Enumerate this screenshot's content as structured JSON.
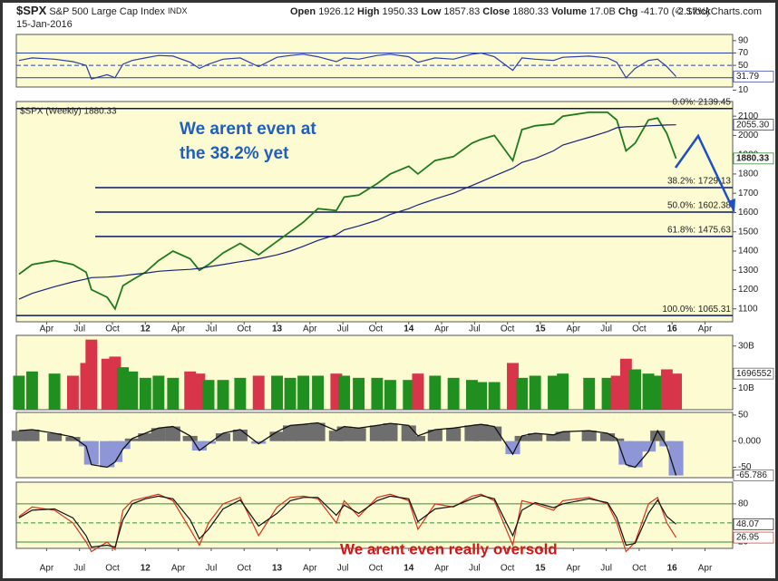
{
  "header": {
    "symbol": "$SPX",
    "name": "S&P 500 Large Cap Index",
    "exchange": "INDX",
    "date": "15-Jan-2016",
    "open_label": "Open",
    "open": "1926.12",
    "high_label": "High",
    "high": "1950.33",
    "low_label": "Low",
    "low": "1857.83",
    "close_label": "Close",
    "close": "1880.33",
    "volume_label": "Volume",
    "volume": "17.0B",
    "chg_label": "Chg",
    "chg": "-41.70 (-2.17%)",
    "source": "© StockCharts.com"
  },
  "chart_data": [
    {
      "type": "line",
      "ylim": [
        15,
        100
      ],
      "yticks": [
        90,
        70,
        50,
        30,
        10
      ],
      "levels": [
        70,
        50,
        30
      ],
      "series": [
        {
          "name": "RSI",
          "color": "#2b3fa8",
          "values": [
            58,
            62,
            60,
            56,
            50,
            28,
            35,
            30,
            52,
            58,
            62,
            66,
            65,
            55,
            45,
            52,
            60,
            62,
            48,
            63,
            66,
            68,
            64,
            56,
            62,
            60,
            66,
            68,
            64,
            55,
            62,
            60,
            68,
            70,
            64,
            42,
            62,
            60,
            58,
            63,
            65,
            62,
            55,
            30,
            45,
            58,
            60,
            48,
            31.79
          ],
          "last_label": "31.79"
        }
      ]
    },
    {
      "type": "line",
      "legend": "$SPX (Weekly) 1880.33",
      "xlim": [
        2011.02,
        2016.46
      ],
      "x": [
        2011.04,
        2011.14,
        2011.31,
        2011.45,
        2011.55,
        2011.59,
        2011.71,
        2011.77,
        2011.83,
        2011.9,
        2012,
        2012.1,
        2012.21,
        2012.34,
        2012.41,
        2012.48,
        2012.59,
        2012.72,
        2012.86,
        2013,
        2013.1,
        2013.2,
        2013.31,
        2013.45,
        2013.51,
        2013.62,
        2013.76,
        2013.86,
        2014,
        2014.07,
        2014.2,
        2014.34,
        2014.48,
        2014.55,
        2014.65,
        2014.79,
        2014.86,
        2014.96,
        2015.1,
        2015.17,
        2015.37,
        2015.51,
        2015.58,
        2015.65,
        2015.72,
        2015.82,
        2015.89,
        2015.96,
        2016.03
      ],
      "xticks": [
        {
          "value": 2011.25,
          "label": "Apr"
        },
        {
          "value": 2011.5,
          "label": "Jul"
        },
        {
          "value": 2011.75,
          "label": "Oct"
        },
        {
          "value": 2012,
          "label": "12"
        },
        {
          "value": 2012.25,
          "label": "Apr"
        },
        {
          "value": 2012.5,
          "label": "Jul"
        },
        {
          "value": 2012.75,
          "label": "Oct"
        },
        {
          "value": 2013,
          "label": "13"
        },
        {
          "value": 2013.25,
          "label": "Apr"
        },
        {
          "value": 2013.5,
          "label": "Jul"
        },
        {
          "value": 2013.75,
          "label": "Oct"
        },
        {
          "value": 2014,
          "label": "14"
        },
        {
          "value": 2014.25,
          "label": "Apr"
        },
        {
          "value": 2014.5,
          "label": "Jul"
        },
        {
          "value": 2014.75,
          "label": "Oct"
        },
        {
          "value": 2015,
          "label": "15"
        },
        {
          "value": 2015.25,
          "label": "Apr"
        },
        {
          "value": 2015.5,
          "label": "Jul"
        },
        {
          "value": 2015.75,
          "label": "Oct"
        },
        {
          "value": 2016,
          "label": "16"
        },
        {
          "value": 2016.25,
          "label": "Apr"
        }
      ],
      "ylim": [
        1033,
        2176
      ],
      "yticks": [
        1100,
        1200,
        1300,
        1400,
        1500,
        1600,
        1700,
        1800,
        1900,
        2000,
        2100
      ],
      "up_color": "#1f8f1f",
      "down_color": "#d8344a",
      "series": [
        {
          "name": "$SPX",
          "color": "#1f7a1f",
          "values": [
            1280,
            1330,
            1350,
            1330,
            1290,
            1200,
            1160,
            1100,
            1220,
            1250,
            1290,
            1350,
            1400,
            1360,
            1300,
            1330,
            1390,
            1440,
            1380,
            1450,
            1500,
            1550,
            1620,
            1610,
            1680,
            1690,
            1750,
            1800,
            1840,
            1800,
            1870,
            1890,
            1960,
            1980,
            2000,
            1870,
            2030,
            2050,
            2060,
            2100,
            2120,
            2120,
            2080,
            1920,
            1960,
            2080,
            2090,
            2010,
            1880.33
          ],
          "last_label": "1880.33"
        },
        {
          "name": "MA",
          "color": "#1a237e",
          "values": [
            1150,
            1180,
            1215,
            1240,
            1255,
            1262,
            1265,
            1268,
            1272,
            1278,
            1285,
            1295,
            1300,
            1305,
            1310,
            1318,
            1330,
            1345,
            1360,
            1380,
            1400,
            1425,
            1455,
            1485,
            1510,
            1530,
            1560,
            1590,
            1620,
            1640,
            1670,
            1700,
            1740,
            1760,
            1790,
            1830,
            1860,
            1880,
            1920,
            1950,
            1990,
            2020,
            2040,
            2045,
            2045,
            2050,
            2052,
            2054,
            2055.3
          ],
          "last_label": "2055.30"
        }
      ],
      "fib_levels": [
        {
          "label": "0.0%: 2139.45",
          "value": 2139.45
        },
        {
          "label": "38.2%: 1729.13",
          "value": 1729.13
        },
        {
          "label": "50.0%: 1602.38",
          "value": 1602.38
        },
        {
          "label": "61.8%: 1475.63",
          "value": 1475.63
        },
        {
          "label": "100.0%: 1065.31",
          "value": 1065.31
        }
      ],
      "annotations": [
        "We arent even at",
        "the 38.2% yet"
      ]
    },
    {
      "type": "bar",
      "ylim": [
        0,
        35
      ],
      "yticks": [
        {
          "value": 30,
          "label": "30B"
        },
        {
          "value": 10,
          "label": "10B"
        }
      ],
      "series": [
        {
          "name": "Volume",
          "values": [
            16,
            18,
            17,
            16,
            22,
            33,
            24,
            25,
            20,
            18,
            15,
            16,
            15,
            18,
            17,
            14,
            14,
            15,
            16,
            16,
            15,
            16,
            16,
            17,
            16,
            15,
            15,
            14,
            14,
            17,
            16,
            15,
            14,
            13,
            13,
            22,
            15,
            16,
            16,
            17,
            15,
            15,
            16,
            24,
            19,
            17,
            16,
            19,
            17
          ],
          "last_label": "1696552"
        }
      ]
    },
    {
      "type": "area",
      "ylim": [
        -70,
        55
      ],
      "yticks": [
        50,
        {
          "value": 0,
          "label": "0.000"
        },
        -50
      ],
      "pos_color": "#6e6e6e",
      "neg_color": "#8f96d8",
      "series": [
        {
          "name": "MACD",
          "color": "#111",
          "values": [
            20,
            22,
            15,
            8,
            -10,
            -45,
            -50,
            -40,
            -15,
            5,
            15,
            25,
            28,
            10,
            -18,
            -5,
            15,
            22,
            -5,
            18,
            30,
            32,
            35,
            20,
            28,
            25,
            30,
            34,
            30,
            10,
            22,
            25,
            30,
            32,
            28,
            -25,
            10,
            15,
            12,
            18,
            20,
            15,
            5,
            -45,
            -50,
            -20,
            20,
            -10,
            -65.786
          ],
          "last_label": "-65.786"
        }
      ]
    },
    {
      "type": "line",
      "ylim": [
        10,
        114
      ],
      "yticks": [
        80,
        20
      ],
      "levels": [
        80,
        50,
        20
      ],
      "xticks": [
        {
          "value": 2011.25,
          "label": "Apr"
        },
        {
          "value": 2011.5,
          "label": "Jul"
        },
        {
          "value": 2011.75,
          "label": "Oct"
        },
        {
          "value": 2012,
          "label": "12"
        },
        {
          "value": 2012.25,
          "label": "Apr"
        },
        {
          "value": 2012.5,
          "label": "Jul"
        },
        {
          "value": 2012.75,
          "label": "Oct"
        },
        {
          "value": 2013,
          "label": "13"
        },
        {
          "value": 2013.25,
          "label": "Apr"
        },
        {
          "value": 2013.5,
          "label": "Jul"
        },
        {
          "value": 2013.75,
          "label": "Oct"
        },
        {
          "value": 2014,
          "label": "14"
        },
        {
          "value": 2014.25,
          "label": "Apr"
        },
        {
          "value": 2014.5,
          "label": "Jul"
        },
        {
          "value": 2014.75,
          "label": "Oct"
        },
        {
          "value": 2015,
          "label": "15"
        },
        {
          "value": 2015.25,
          "label": "Apr"
        },
        {
          "value": 2015.5,
          "label": "Jul"
        },
        {
          "value": 2015.75,
          "label": "Oct"
        },
        {
          "value": 2016,
          "label": "16"
        },
        {
          "value": 2016.25,
          "label": "Apr"
        }
      ],
      "series": [
        {
          "name": "%K",
          "color": "#d8341a",
          "values": [
            60,
            75,
            70,
            50,
            20,
            5,
            20,
            8,
            70,
            85,
            90,
            95,
            85,
            40,
            15,
            50,
            80,
            90,
            30,
            75,
            90,
            92,
            88,
            50,
            85,
            60,
            90,
            95,
            85,
            40,
            80,
            75,
            92,
            95,
            85,
            15,
            85,
            80,
            70,
            85,
            90,
            80,
            50,
            5,
            20,
            80,
            90,
            50,
            26.95
          ],
          "last_label": "26.95"
        },
        {
          "name": "%D",
          "color": "#111",
          "values": [
            58,
            70,
            72,
            58,
            30,
            12,
            15,
            12,
            55,
            80,
            88,
            92,
            88,
            55,
            25,
            40,
            72,
            86,
            45,
            65,
            85,
            90,
            90,
            62,
            78,
            65,
            85,
            92,
            88,
            52,
            72,
            76,
            88,
            93,
            88,
            30,
            70,
            82,
            74,
            80,
            88,
            82,
            58,
            15,
            18,
            65,
            86,
            60,
            48.07
          ],
          "last_label": "48.07"
        }
      ],
      "annotation": "We arent even really oversold"
    }
  ]
}
